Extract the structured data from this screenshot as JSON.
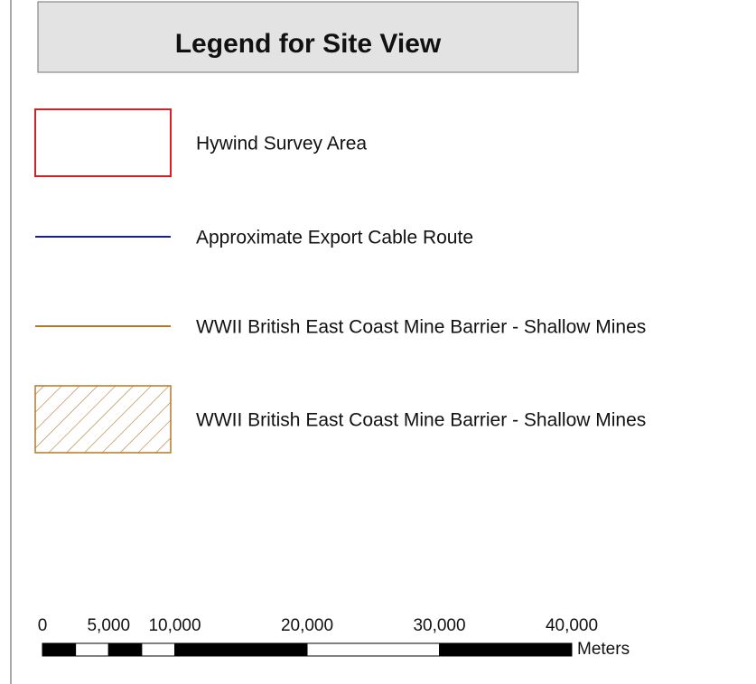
{
  "legend": {
    "title": "Legend for Site View",
    "items": [
      {
        "label": "Hywind Survey Area",
        "symbol": "outline",
        "color": "#d42020"
      },
      {
        "label": "Approximate Export Cable Route",
        "symbol": "line",
        "color": "#1a1aa8"
      },
      {
        "label": "WWII British East Coast Mine Barrier - Shallow Mines",
        "symbol": "line",
        "color": "#b07a2a"
      },
      {
        "label": "WWII British East Coast Mine Barrier - Shallow Mines",
        "symbol": "hatch",
        "color": "#b07a2a"
      }
    ]
  },
  "scale_bar": {
    "unit": "Meters",
    "ticks": [
      0,
      {
        "value": 5000,
        "label": "5,000"
      },
      {
        "value": 10000,
        "label": "10,000"
      },
      {
        "value": 20000,
        "label": "20,000"
      },
      {
        "value": 30000,
        "label": "30,000"
      },
      {
        "value": 40000,
        "label": "40,000"
      }
    ],
    "divisions": [
      0,
      2500,
      5000,
      7500,
      10000,
      20000,
      30000,
      40000
    ]
  }
}
